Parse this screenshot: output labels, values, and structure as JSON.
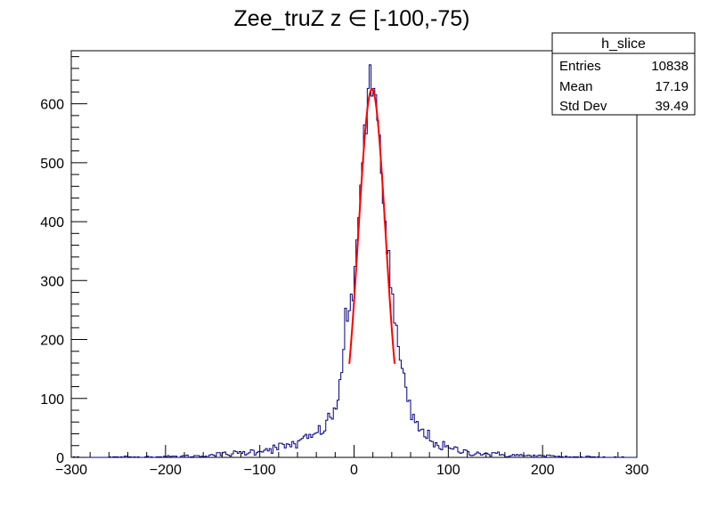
{
  "chart_data": {
    "type": "histogram",
    "title": "Zee_truZ z ∈ [-100,-75)",
    "xlabel": "",
    "ylabel": "",
    "xlim": [
      -300,
      300
    ],
    "ylim": [
      0,
      690
    ],
    "grid": false,
    "legend": "none",
    "x_ticks": [
      -300,
      -200,
      -100,
      0,
      100,
      200,
      300
    ],
    "x_tick_labels": [
      "−300",
      "−200",
      "−100",
      "0",
      "100",
      "200",
      "300"
    ],
    "y_ticks": [
      0,
      100,
      200,
      300,
      400,
      500,
      600
    ],
    "y_tick_labels": [
      "0",
      "100",
      "200",
      "300",
      "400",
      "500",
      "600"
    ],
    "histogram": {
      "color": "#000080",
      "bin_width": 2,
      "profile": [
        [
          -300,
          0
        ],
        [
          -200,
          1
        ],
        [
          -170,
          2
        ],
        [
          -150,
          4
        ],
        [
          -130,
          6
        ],
        [
          -110,
          9
        ],
        [
          -100,
          12
        ],
        [
          -80,
          17
        ],
        [
          -60,
          24
        ],
        [
          -45,
          35
        ],
        [
          -35,
          45
        ],
        [
          -25,
          65
        ],
        [
          -20,
          80
        ],
        [
          -15,
          120
        ],
        [
          -10,
          210
        ],
        [
          -5,
          240
        ],
        [
          0,
          300
        ],
        [
          5,
          430
        ],
        [
          10,
          520
        ],
        [
          15,
          590
        ],
        [
          18,
          625
        ],
        [
          20,
          630
        ],
        [
          22,
          620
        ],
        [
          25,
          575
        ],
        [
          30,
          470
        ],
        [
          35,
          370
        ],
        [
          40,
          270
        ],
        [
          45,
          210
        ],
        [
          50,
          150
        ],
        [
          55,
          110
        ],
        [
          60,
          75
        ],
        [
          70,
          45
        ],
        [
          80,
          33
        ],
        [
          90,
          20
        ],
        [
          100,
          15
        ],
        [
          120,
          9
        ],
        [
          150,
          5
        ],
        [
          180,
          3
        ],
        [
          220,
          1
        ],
        [
          300,
          0
        ]
      ]
    },
    "fit": {
      "color": "#ff0000",
      "function": "gaussian",
      "constant": 625,
      "mean": 19,
      "sigma": 14.5,
      "x_range": [
        -5,
        43
      ]
    },
    "stats_box": {
      "title": "h_slice",
      "rows": [
        {
          "label": "Entries",
          "value": "10838"
        },
        {
          "label": "Mean",
          "value": "17.19"
        },
        {
          "label": "Std Dev",
          "value": "39.49"
        }
      ]
    }
  }
}
